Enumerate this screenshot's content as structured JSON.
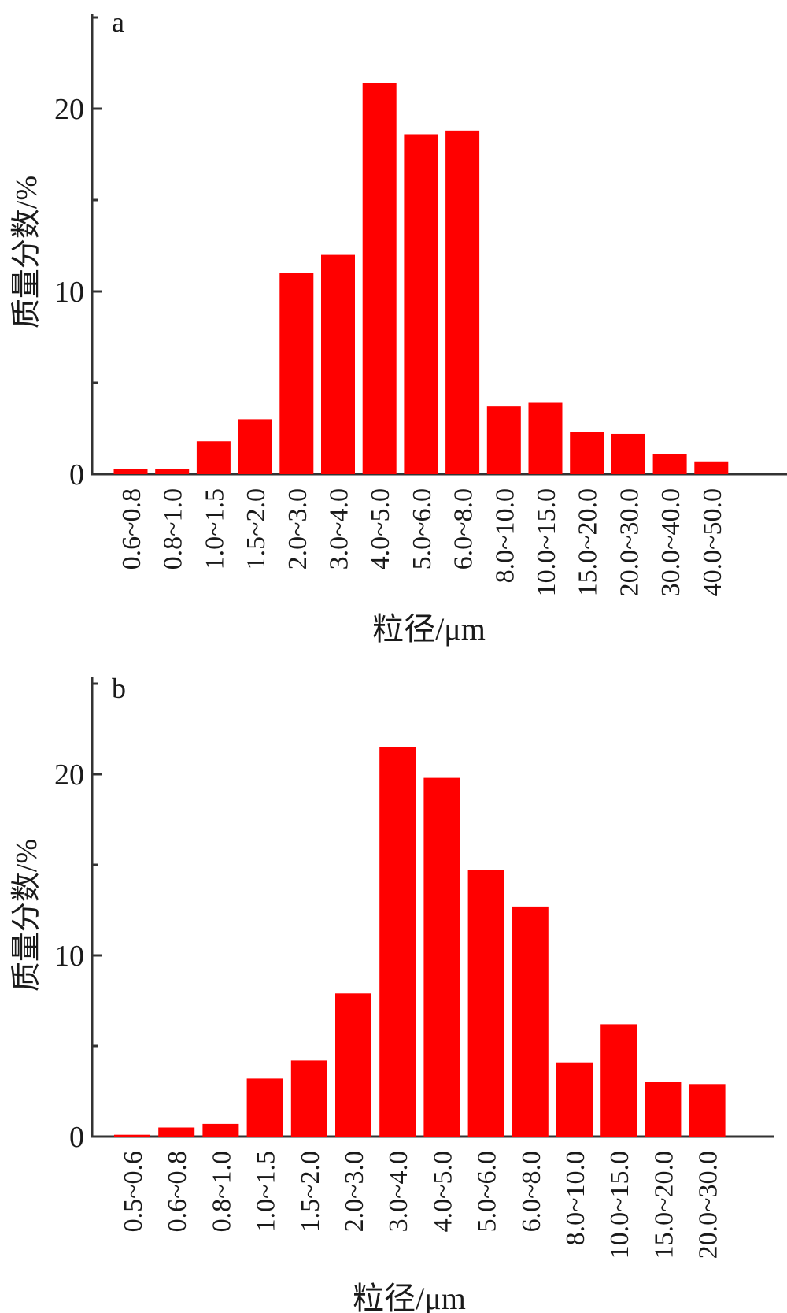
{
  "chart_data": [
    {
      "type": "bar",
      "panel_label": "a",
      "categories": [
        "0.6~0.8",
        "0.8~1.0",
        "1.0~1.5",
        "1.5~2.0",
        "2.0~3.0",
        "3.0~4.0",
        "4.0~5.0",
        "5.0~6.0",
        "6.0~8.0",
        "8.0~10.0",
        "10.0~15.0",
        "15.0~20.0",
        "20.0~30.0",
        "30.0~40.0",
        "40.0~50.0"
      ],
      "values": [
        0.3,
        0.3,
        1.8,
        3.0,
        11.0,
        12.0,
        21.4,
        18.6,
        18.8,
        3.7,
        3.9,
        2.3,
        2.2,
        1.1,
        0.7
      ],
      "xlabel": "粒径/μm",
      "ylabel": "质量分数/%",
      "ylim": [
        0,
        25
      ],
      "yticks": [
        "0",
        "10",
        "20"
      ],
      "bar_color": "#ff0000"
    },
    {
      "type": "bar",
      "panel_label": "b",
      "categories": [
        "0.5~0.6",
        "0.6~0.8",
        "0.8~1.0",
        "1.0~1.5",
        "1.5~2.0",
        "2.0~3.0",
        "3.0~4.0",
        "4.0~5.0",
        "5.0~6.0",
        "6.0~8.0",
        "8.0~10.0",
        "10.0~15.0",
        "15.0~20.0",
        "20.0~30.0"
      ],
      "values": [
        0.1,
        0.5,
        0.7,
        3.2,
        4.2,
        7.9,
        21.5,
        19.8,
        14.7,
        12.7,
        4.1,
        6.2,
        3.0,
        2.9
      ],
      "xlabel": "粒径/μm",
      "ylabel": "质量分数/%",
      "ylim": [
        0,
        25
      ],
      "yticks": [
        "0",
        "10",
        "20"
      ],
      "bar_color": "#ff0000"
    }
  ]
}
